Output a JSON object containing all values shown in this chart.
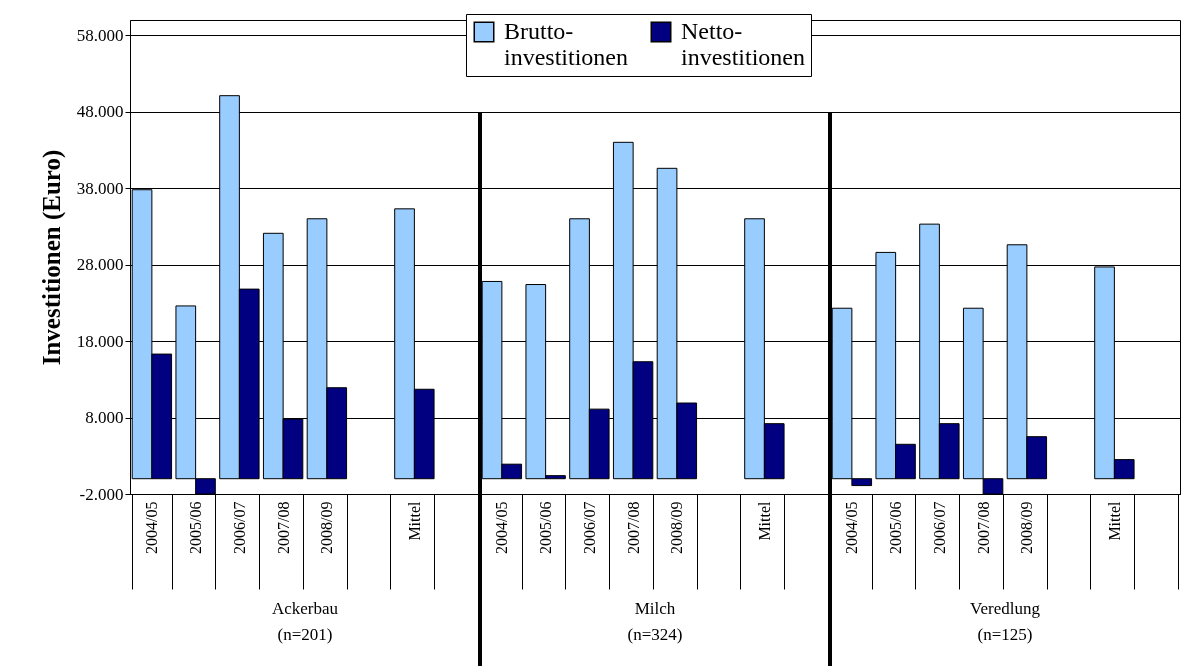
{
  "chart_data": {
    "type": "bar",
    "ylabel": "Investitionen (Euro)",
    "categories": [
      "2004/05",
      "2005/06",
      "2006/07",
      "2007/08",
      "2008/09",
      null,
      "Mittel",
      null,
      "2004/05",
      "2005/06",
      "2006/07",
      "2007/08",
      "2008/09",
      null,
      "Mittel",
      null,
      "2004/05",
      "2005/06",
      "2006/07",
      "2007/08",
      "2008/09",
      null,
      "Mittel",
      null
    ],
    "series": [
      {
        "name": "Brutto- investitionen",
        "color": "#99ccff",
        "values": [
          37800,
          22600,
          50100,
          32100,
          34000,
          null,
          35300,
          null,
          25800,
          25400,
          34000,
          44000,
          40600,
          null,
          34000,
          null,
          22300,
          29600,
          33300,
          22300,
          30600,
          null,
          27700,
          null
        ]
      },
      {
        "name": "Netto- investitionen",
        "color": "#000080",
        "values": [
          16300,
          -2000,
          24800,
          7800,
          11900,
          null,
          11700,
          null,
          1900,
          400,
          9100,
          15300,
          9900,
          null,
          7200,
          null,
          -900,
          4500,
          7200,
          -2000,
          5500,
          null,
          2500,
          null
        ]
      }
    ],
    "ylim": [
      -2000,
      60000
    ],
    "yticks": [
      {
        "value": -2000,
        "label": "-2.000"
      },
      {
        "value": 8000,
        "label": "8.000"
      },
      {
        "value": 18000,
        "label": "18.000"
      },
      {
        "value": 28000,
        "label": "28.000"
      },
      {
        "value": 38000,
        "label": "38.000"
      },
      {
        "value": 48000,
        "label": "48.000"
      },
      {
        "value": 58000,
        "label": "58.000"
      }
    ],
    "grid": "y",
    "legend": "top",
    "annotations": [
      "Ackerbau\n(n=201)",
      "Milch\n(n=324)",
      "Veredlung\n(n=125)"
    ]
  }
}
